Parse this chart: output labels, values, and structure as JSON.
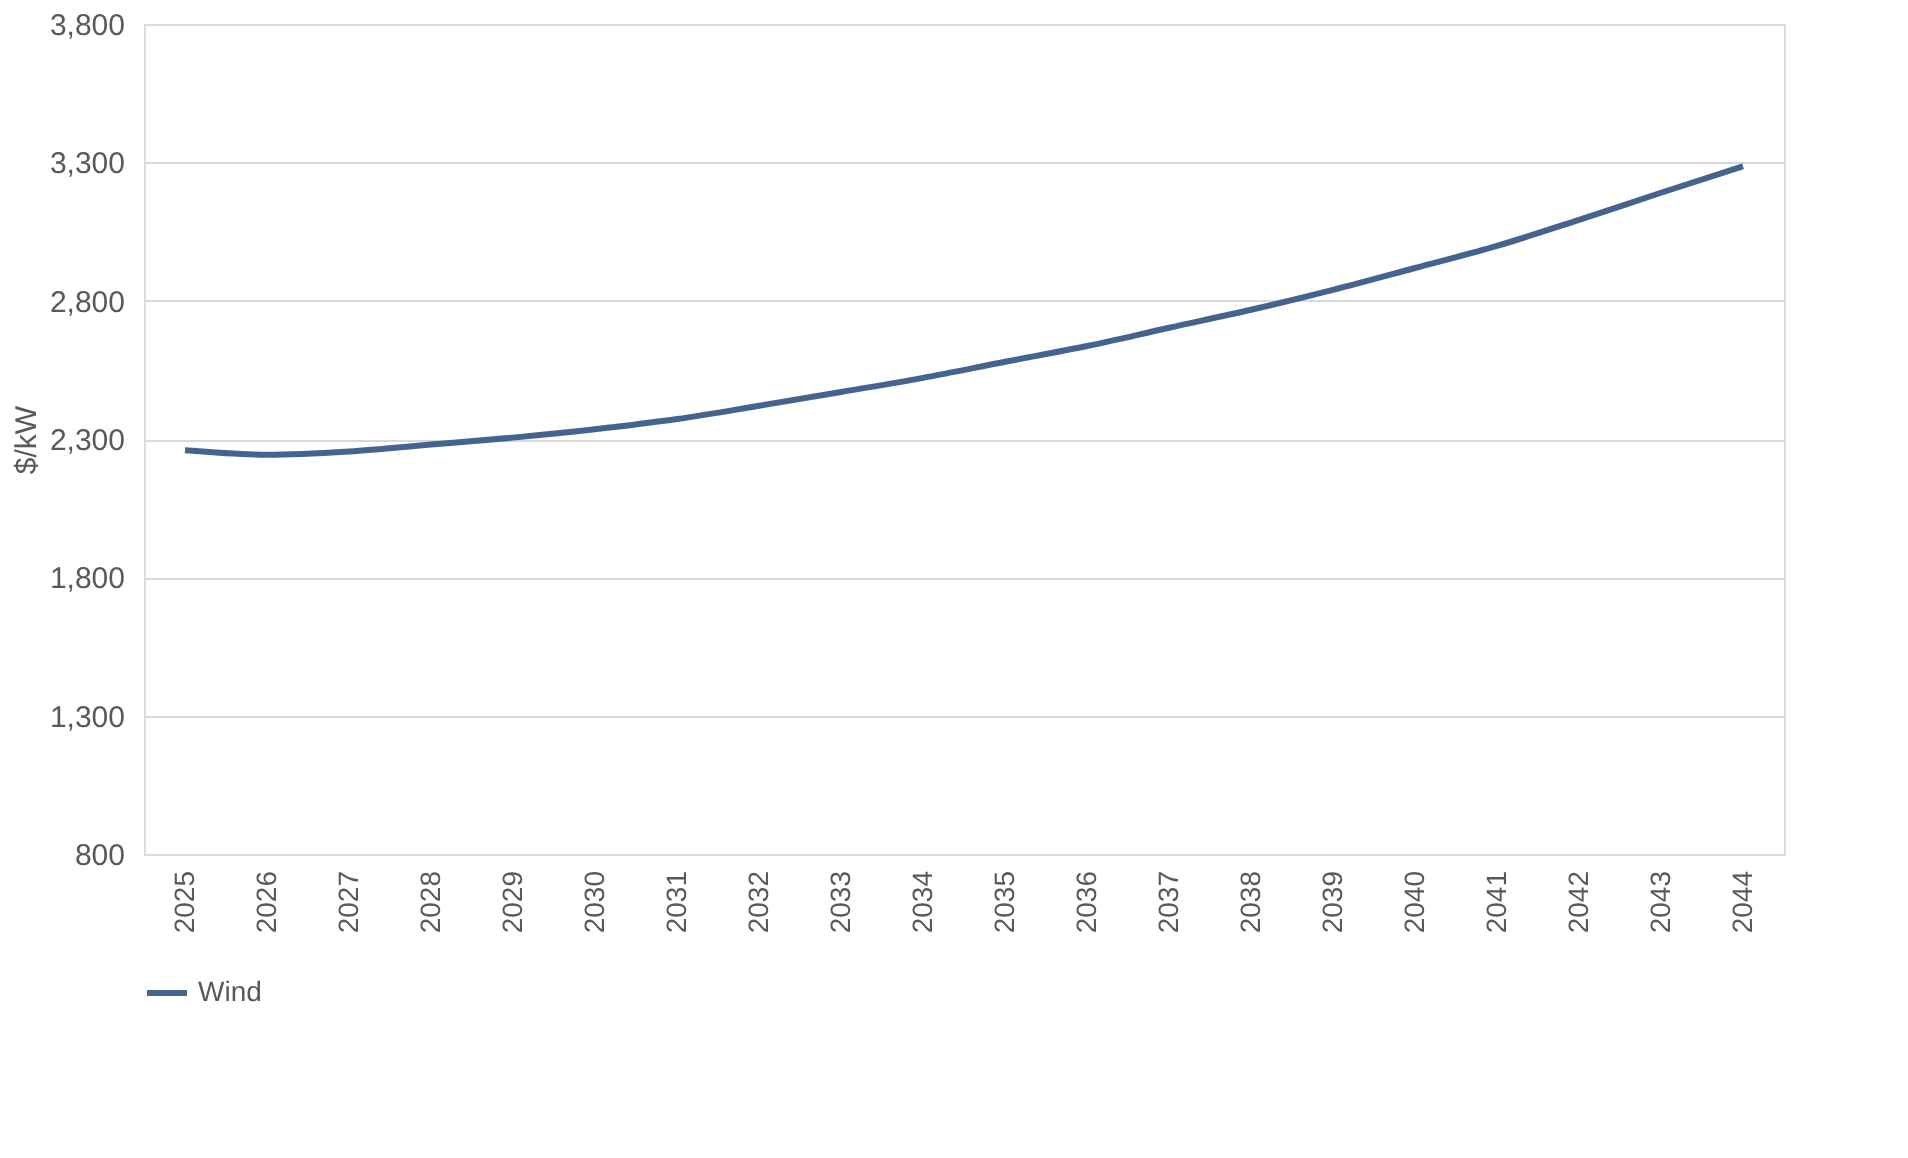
{
  "chart_data": {
    "type": "line",
    "ylabel": "$/kW",
    "categories": [
      "2025",
      "2026",
      "2027",
      "2028",
      "2029",
      "2030",
      "2031",
      "2032",
      "2033",
      "2034",
      "2035",
      "2036",
      "2037",
      "2038",
      "2039",
      "2040",
      "2041",
      "2042",
      "2043",
      "2044"
    ],
    "series": [
      {
        "name": "Wind",
        "color": "#44648f",
        "values": [
          2259,
          2243,
          2255,
          2280,
          2305,
          2335,
          2372,
          2420,
          2470,
          2521,
          2579,
          2636,
          2702,
          2767,
          2839,
          2918,
          2998,
          3092,
          3190,
          3286
        ]
      }
    ],
    "ylim": [
      800,
      3800
    ],
    "yticks": [
      {
        "value": 800,
        "label": "800"
      },
      {
        "value": 1300,
        "label": "1,300"
      },
      {
        "value": 1800,
        "label": "1,800"
      },
      {
        "value": 2300,
        "label": "2,300"
      },
      {
        "value": 2800,
        "label": "2,800"
      },
      {
        "value": 3300,
        "label": "3,300"
      },
      {
        "value": 3800,
        "label": "3,800"
      }
    ],
    "grid": "y",
    "legend": "bottom",
    "marker": "none",
    "line_style": "solid"
  }
}
